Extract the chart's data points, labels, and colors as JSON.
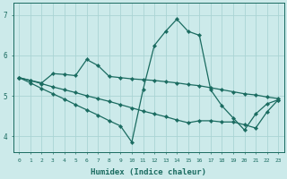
{
  "xlabel": "Humidex (Indice chaleur)",
  "background_color": "#cceaea",
  "grid_color": "#aad4d4",
  "line_color": "#1a6b60",
  "xlim": [
    -0.5,
    23.5
  ],
  "ylim": [
    3.6,
    7.3
  ],
  "yticks": [
    4,
    5,
    6,
    7
  ],
  "xticks": [
    0,
    1,
    2,
    3,
    4,
    5,
    6,
    7,
    8,
    9,
    10,
    11,
    12,
    13,
    14,
    15,
    16,
    17,
    18,
    19,
    20,
    21,
    22,
    23
  ],
  "series1_x": [
    0,
    1,
    2,
    3,
    4,
    5,
    6,
    7,
    8,
    9,
    10,
    11,
    12,
    13,
    14,
    15,
    16,
    17,
    18,
    19,
    20,
    21,
    22,
    23
  ],
  "series1_y": [
    5.45,
    5.38,
    5.32,
    5.55,
    5.53,
    5.5,
    5.9,
    5.75,
    5.48,
    5.45,
    5.42,
    5.4,
    5.38,
    5.35,
    5.32,
    5.28,
    5.25,
    5.2,
    5.15,
    5.1,
    5.05,
    5.02,
    4.97,
    4.93
  ],
  "series2_x": [
    0,
    1,
    2,
    3,
    4,
    5,
    6,
    7,
    8,
    9,
    10,
    11,
    12,
    13,
    14,
    15,
    16,
    17,
    18,
    19,
    20,
    21,
    22,
    23
  ],
  "series2_y": [
    5.45,
    5.32,
    5.18,
    5.05,
    4.92,
    4.78,
    4.65,
    4.52,
    4.38,
    4.25,
    3.85,
    5.15,
    6.25,
    6.6,
    6.9,
    6.6,
    6.5,
    5.15,
    4.75,
    4.45,
    4.15,
    4.55,
    4.8,
    4.9
  ],
  "series3_x": [
    0,
    1,
    2,
    3,
    4,
    5,
    6,
    7,
    8,
    9,
    10,
    11,
    12,
    13,
    14,
    15,
    16,
    17,
    18,
    19,
    20,
    21,
    22,
    23
  ],
  "series3_y": [
    5.45,
    5.38,
    5.3,
    5.22,
    5.15,
    5.08,
    5.0,
    4.93,
    4.86,
    4.78,
    4.7,
    4.62,
    4.55,
    4.48,
    4.4,
    4.33,
    4.38,
    4.38,
    4.35,
    4.35,
    4.28,
    4.2,
    4.6,
    4.9
  ]
}
